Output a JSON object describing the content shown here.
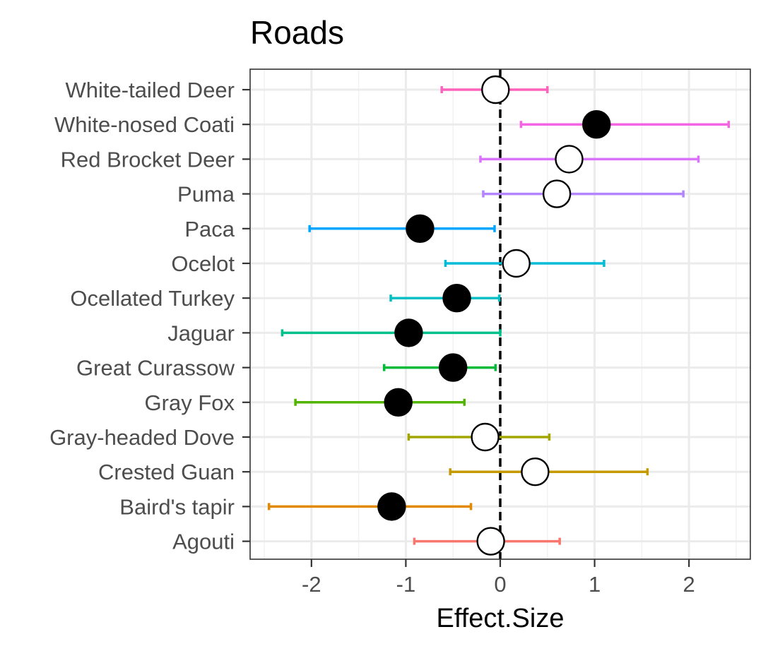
{
  "chart_data": {
    "type": "scatter",
    "subtype": "forest-plot",
    "title": "Roads",
    "xlabel": "Effect.Size",
    "ylabel": "",
    "xlim": [
      -2.65,
      2.65
    ],
    "x_ticks": [
      -2,
      -1,
      0,
      1,
      2
    ],
    "x_tick_labels": [
      "-2",
      "-1",
      "0",
      "1",
      "2"
    ],
    "reference_line": {
      "x": 0,
      "style": "dashed",
      "color": "#000000"
    },
    "grid": true,
    "legend": "none",
    "categories": [
      "White-tailed Deer",
      "White-nosed Coati",
      "Red Brocket Deer",
      "Puma",
      "Paca",
      "Ocelot",
      "Ocellated Turkey",
      "Jaguar",
      "Great Curassow",
      "Gray Fox",
      "Gray-headed Dove",
      "Crested Guan",
      "Baird's tapir",
      "Agouti"
    ],
    "points": [
      {
        "species": "White-tailed Deer",
        "estimate": -0.05,
        "lower": -0.62,
        "upper": 0.5,
        "significant": false,
        "color": "#FF62BC"
      },
      {
        "species": "White-nosed Coati",
        "estimate": 1.02,
        "lower": 0.22,
        "upper": 2.42,
        "significant": true,
        "color": "#F564E3"
      },
      {
        "species": "Red Brocket Deer",
        "estimate": 0.73,
        "lower": -0.21,
        "upper": 2.1,
        "significant": false,
        "color": "#DB72FB"
      },
      {
        "species": "Puma",
        "estimate": 0.6,
        "lower": -0.18,
        "upper": 1.94,
        "significant": false,
        "color": "#B385FF"
      },
      {
        "species": "Paca",
        "estimate": -0.85,
        "lower": -2.02,
        "upper": -0.06,
        "significant": true,
        "color": "#00A5FF"
      },
      {
        "species": "Ocelot",
        "estimate": 0.17,
        "lower": -0.58,
        "upper": 1.1,
        "significant": false,
        "color": "#00BCD8"
      },
      {
        "species": "Ocellated Turkey",
        "estimate": -0.46,
        "lower": -1.16,
        "upper": -0.01,
        "significant": true,
        "color": "#00BFC4"
      },
      {
        "species": "Jaguar",
        "estimate": -0.97,
        "lower": -2.31,
        "upper": 0.0,
        "significant": true,
        "color": "#00C08B"
      },
      {
        "species": "Great Curassow",
        "estimate": -0.5,
        "lower": -1.23,
        "upper": -0.05,
        "significant": true,
        "color": "#00BA38"
      },
      {
        "species": "Gray Fox",
        "estimate": -1.08,
        "lower": -2.17,
        "upper": -0.38,
        "significant": true,
        "color": "#53B400"
      },
      {
        "species": "Gray-headed Dove",
        "estimate": -0.16,
        "lower": -0.97,
        "upper": 0.52,
        "significant": false,
        "color": "#A3A500"
      },
      {
        "species": "Crested Guan",
        "estimate": 0.37,
        "lower": -0.53,
        "upper": 1.56,
        "significant": false,
        "color": "#C49A00"
      },
      {
        "species": "Baird's tapir",
        "estimate": -1.15,
        "lower": -2.45,
        "upper": -0.31,
        "significant": true,
        "color": "#E38900"
      },
      {
        "species": "Agouti",
        "estimate": -0.1,
        "lower": -0.91,
        "upper": 0.63,
        "significant": false,
        "color": "#F8766D"
      }
    ]
  }
}
